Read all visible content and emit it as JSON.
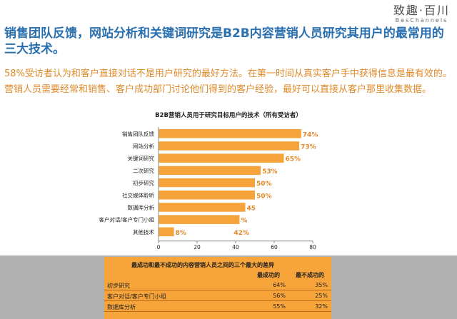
{
  "logo": {
    "main": "致趣·百川",
    "sub": "BesChannels"
  },
  "headline": "销售团队反馈，网站分析和关键词研究是B2B内容营销人员研究其用户的最常用的三大技术。",
  "body_text": "58%受访者认为和客户直接对话不是用户研究的最好方法。在第一时间从真实客户手中获得信息是最有效的。营销人员需要经常和销售、客户成功部门讨论他们得到的客户经验，最好可以直接从客户那里收集数据。",
  "colors": {
    "bar": "#f5a33a",
    "headline": "#2a6fb0",
    "body": "#e08a2a",
    "table_bg": "#f7a43a",
    "band": "#b0b0b0"
  },
  "chart_data": {
    "type": "bar",
    "orientation": "horizontal",
    "title": "B2B营销人员用于研究目标用户的技术（所有受访者）",
    "categories": [
      "销售团队反馈",
      "网站分析",
      "关键词研究",
      "二次研究",
      "初步研究",
      "社交媒体聆听",
      "数据库分析",
      "客户对话/客户专门小组",
      "其他技术"
    ],
    "values": [
      74,
      73,
      65,
      53,
      50,
      50,
      45,
      42,
      8
    ],
    "data_labels": [
      "74%",
      "73%",
      "65%",
      "53%",
      "50%",
      "50%",
      "45",
      "%",
      "8%"
    ],
    "extra_labels": [
      {
        "text": "42%",
        "category_index": 8,
        "value": 42
      }
    ],
    "xlim": [
      0,
      80
    ],
    "xticks": [
      0,
      20,
      40,
      60,
      80
    ],
    "grid": false
  },
  "diff_table": {
    "title": "最成功和最不成功的内容营销人员之间的三个最大的差异",
    "headers": [
      "最成功的",
      "最不成功的"
    ],
    "rows": [
      {
        "label": "初步研究",
        "most": "64%",
        "least": "35%"
      },
      {
        "label": "客户对话/客户专门小组",
        "most": "56%",
        "least": "25%"
      },
      {
        "label": "数据库分析",
        "most": "55%",
        "least": "32%"
      }
    ]
  }
}
